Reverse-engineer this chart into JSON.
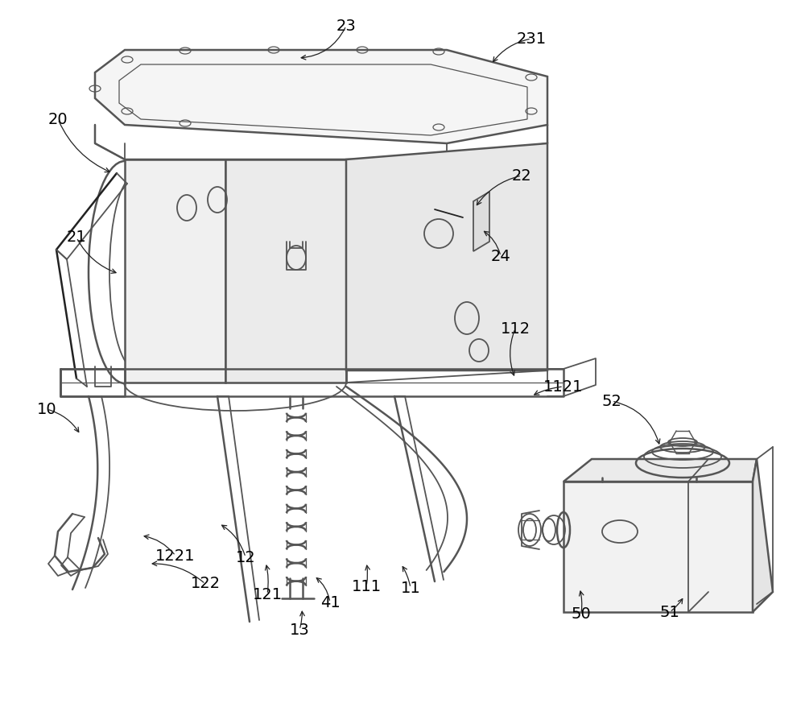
{
  "bg_color": "#ffffff",
  "lc": "#555555",
  "lc_dark": "#222222",
  "lw": 1.3,
  "lw2": 1.8,
  "figsize": [
    10.0,
    8.99
  ],
  "dpi": 100,
  "labels": [
    [
      "23",
      430,
      32
    ],
    [
      "231",
      660,
      48
    ],
    [
      "20",
      72,
      148
    ],
    [
      "21",
      95,
      295
    ],
    [
      "22",
      648,
      218
    ],
    [
      "24",
      622,
      318
    ],
    [
      "112",
      640,
      408
    ],
    [
      "1121",
      700,
      480
    ],
    [
      "10",
      58,
      508
    ],
    [
      "1221",
      218,
      690
    ],
    [
      "122",
      255,
      725
    ],
    [
      "12",
      305,
      692
    ],
    [
      "121",
      332,
      738
    ],
    [
      "13",
      372,
      782
    ],
    [
      "41",
      410,
      748
    ],
    [
      "111",
      455,
      728
    ],
    [
      "11",
      510,
      730
    ],
    [
      "52",
      760,
      498
    ],
    [
      "50",
      722,
      762
    ],
    [
      "51",
      832,
      760
    ]
  ]
}
